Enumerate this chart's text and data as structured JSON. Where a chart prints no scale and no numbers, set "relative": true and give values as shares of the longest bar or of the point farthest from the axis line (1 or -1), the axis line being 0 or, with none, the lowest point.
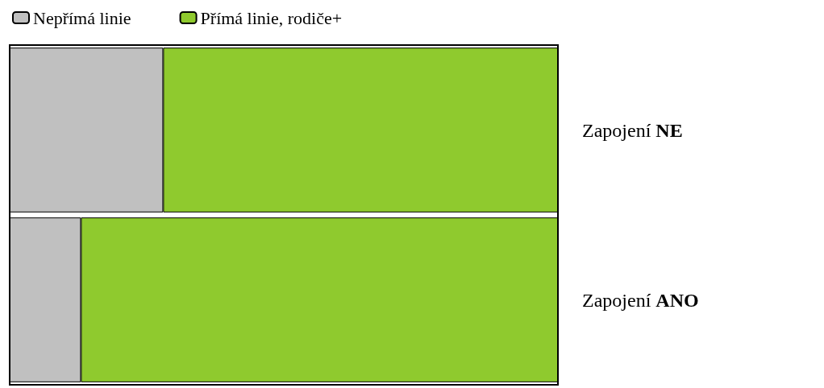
{
  "chart_data": {
    "type": "bar",
    "orientation": "horizontal",
    "stacked": true,
    "relative": true,
    "categories": [
      "Zapojení NE",
      "Zapojení ANO"
    ],
    "series": [
      {
        "name": "Nepřímá linie",
        "color": "#c0c0c0",
        "values": [
          0.28,
          0.13
        ]
      },
      {
        "name": "Přímá linie, rodiče+",
        "color": "#8fca2e",
        "values": [
          0.72,
          0.87
        ]
      }
    ],
    "legend": "top left"
  }
}
